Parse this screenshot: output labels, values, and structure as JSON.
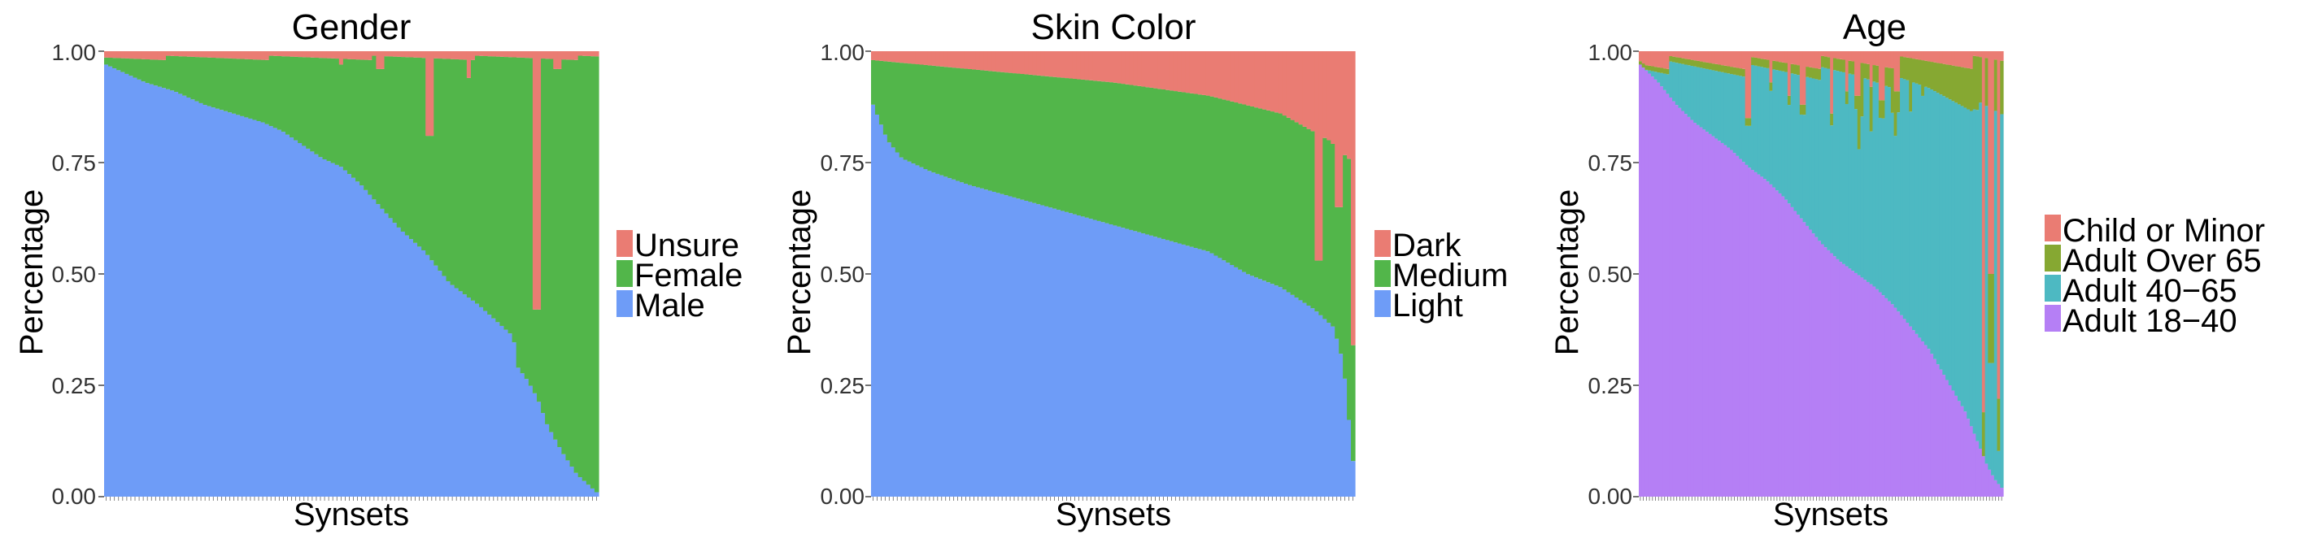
{
  "chart_data": [
    {
      "type": "bar",
      "stacked": true,
      "normalized": true,
      "title": "Gender",
      "xlabel": "Synsets",
      "ylabel": "Percentage",
      "ylim": [
        0,
        1
      ],
      "yticks": [
        "0.00",
        "0.25",
        "0.50",
        "0.75",
        "1.00"
      ],
      "n_categories": 120,
      "legend_position": "right",
      "colors": {
        "Male": "#6e9cf7",
        "Female": "#52b64a",
        "Unsure": "#ea7c73"
      },
      "series": [
        {
          "name": "Male",
          "start": 0.95,
          "profile": [
            [
              0,
              0.97
            ],
            [
              0.04,
              0.95
            ],
            [
              0.08,
              0.93
            ],
            [
              0.14,
              0.91
            ],
            [
              0.2,
              0.88
            ],
            [
              0.26,
              0.86
            ],
            [
              0.32,
              0.84
            ],
            [
              0.36,
              0.82
            ],
            [
              0.4,
              0.79
            ],
            [
              0.44,
              0.76
            ],
            [
              0.48,
              0.74
            ],
            [
              0.52,
              0.7
            ],
            [
              0.56,
              0.65
            ],
            [
              0.6,
              0.6
            ],
            [
              0.65,
              0.55
            ],
            [
              0.7,
              0.48
            ],
            [
              0.76,
              0.43
            ],
            [
              0.8,
              0.39
            ],
            [
              0.83,
              0.36
            ],
            [
              0.84,
              0.29
            ],
            [
              0.86,
              0.26
            ],
            [
              0.88,
              0.22
            ],
            [
              0.9,
              0.16
            ],
            [
              0.93,
              0.1
            ],
            [
              0.96,
              0.05
            ],
            [
              1,
              0.01
            ]
          ]
        },
        {
          "name": "Female"
        },
        {
          "name": "Unsure",
          "base": [
            0.01,
            0.02
          ],
          "spikes": [
            [
              0.66,
              0.19
            ],
            [
              0.74,
              0.06
            ],
            [
              0.88,
              0.58
            ],
            [
              0.56,
              0.04
            ],
            [
              0.48,
              0.03
            ],
            [
              0.92,
              0.04
            ]
          ]
        }
      ]
    },
    {
      "type": "bar",
      "stacked": true,
      "normalized": true,
      "title": "Skin Color",
      "xlabel": "Synsets",
      "ylabel": "Percentage",
      "ylim": [
        0,
        1
      ],
      "yticks": [
        "0.00",
        "0.25",
        "0.50",
        "0.75",
        "1.00"
      ],
      "n_categories": 120,
      "legend_position": "right",
      "colors": {
        "Light": "#6e9cf7",
        "Medium": "#52b64a",
        "Dark": "#ea7c73"
      },
      "series": [
        {
          "name": "Light",
          "profile": [
            [
              0,
              0.88
            ],
            [
              0.03,
              0.8
            ],
            [
              0.06,
              0.76
            ],
            [
              0.12,
              0.73
            ],
            [
              0.2,
              0.7
            ],
            [
              0.3,
              0.67
            ],
            [
              0.4,
              0.64
            ],
            [
              0.5,
              0.61
            ],
            [
              0.6,
              0.58
            ],
            [
              0.7,
              0.55
            ],
            [
              0.78,
              0.5
            ],
            [
              0.85,
              0.47
            ],
            [
              0.92,
              0.42
            ],
            [
              0.96,
              0.38
            ],
            [
              0.98,
              0.3
            ],
            [
              1,
              0.08
            ]
          ]
        },
        {
          "name": "Medium"
        },
        {
          "name": "Dark",
          "profile": [
            [
              0,
              0.02
            ],
            [
              0.1,
              0.03
            ],
            [
              0.3,
              0.05
            ],
            [
              0.5,
              0.07
            ],
            [
              0.7,
              0.1
            ],
            [
              0.85,
              0.14
            ],
            [
              0.95,
              0.2
            ],
            [
              1,
              0.25
            ]
          ],
          "spikes": [
            [
              0.93,
              0.47
            ],
            [
              0.97,
              0.35
            ],
            [
              1,
              0.66
            ]
          ]
        }
      ]
    },
    {
      "type": "bar",
      "stacked": true,
      "normalized": true,
      "title": "Age",
      "xlabel": "Synsets",
      "ylabel": "Percentage",
      "ylim": [
        0,
        1
      ],
      "yticks": [
        "0.00",
        "0.25",
        "0.50",
        "0.75",
        "1.00"
      ],
      "n_categories": 120,
      "legend_position": "right",
      "colors": {
        "Adult 18−40": "#b57ff5",
        "Adult 40−65": "#4db9c2",
        "Adult Over 65": "#86a832",
        "Child or Minor": "#ea7c73"
      },
      "series": [
        {
          "name": "Adult 18−40",
          "profile": [
            [
              0,
              0.97
            ],
            [
              0.05,
              0.93
            ],
            [
              0.1,
              0.88
            ],
            [
              0.15,
              0.84
            ],
            [
              0.2,
              0.81
            ],
            [
              0.25,
              0.78
            ],
            [
              0.3,
              0.74
            ],
            [
              0.35,
              0.71
            ],
            [
              0.4,
              0.67
            ],
            [
              0.45,
              0.62
            ],
            [
              0.5,
              0.57
            ],
            [
              0.55,
              0.53
            ],
            [
              0.6,
              0.5
            ],
            [
              0.65,
              0.47
            ],
            [
              0.7,
              0.43
            ],
            [
              0.75,
              0.38
            ],
            [
              0.8,
              0.33
            ],
            [
              0.85,
              0.26
            ],
            [
              0.9,
              0.19
            ],
            [
              0.93,
              0.13
            ],
            [
              0.96,
              0.07
            ],
            [
              0.98,
              0.04
            ],
            [
              1,
              0.02
            ]
          ]
        },
        {
          "name": "Adult 40−65"
        },
        {
          "name": "Adult Over 65",
          "profile": [
            [
              0,
              0.01
            ],
            [
              0.4,
              0.02
            ],
            [
              0.6,
              0.03
            ],
            [
              0.8,
              0.06
            ],
            [
              1,
              0.12
            ]
          ],
          "spikes": [
            [
              0.61,
              0.12
            ],
            [
              0.64,
              0.1
            ],
            [
              0.7,
              0.1
            ],
            [
              0.75,
              0.12
            ],
            [
              0.78,
              0.08
            ],
            [
              0.93,
              0.12
            ],
            [
              0.97,
              0.2
            ]
          ]
        },
        {
          "name": "Child or Minor",
          "base": [
            0.01,
            0.04
          ],
          "spikes": [
            [
              0.3,
              0.15
            ],
            [
              0.36,
              0.07
            ],
            [
              0.41,
              0.1
            ],
            [
              0.45,
              0.12
            ],
            [
              0.53,
              0.14
            ],
            [
              0.57,
              0.09
            ],
            [
              0.6,
              0.1
            ],
            [
              0.64,
              0.08
            ],
            [
              0.67,
              0.11
            ],
            [
              0.71,
              0.09
            ],
            [
              0.95,
              0.86
            ],
            [
              0.97,
              0.5
            ],
            [
              0.99,
              0.78
            ]
          ]
        }
      ]
    }
  ]
}
